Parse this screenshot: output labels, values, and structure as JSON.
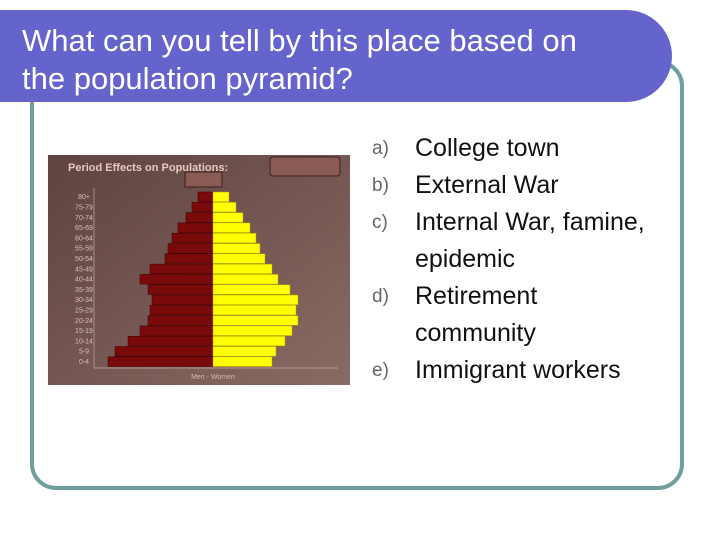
{
  "header": {
    "title": "What can you tell by this place based on the population pyramid?"
  },
  "figure": {
    "title": "Period Effects on Populations:",
    "xlabel": "Men - Women",
    "categories": [
      "80+",
      "75-79",
      "70-74",
      "65-69",
      "60-64",
      "55-59",
      "50-54",
      "45-49",
      "40-44",
      "35-39",
      "30-34",
      "25-29",
      "20-24",
      "15-19",
      "10-14",
      "5-9",
      "0-4"
    ],
    "series": [
      {
        "name": "Men",
        "color": "#7a0a0a",
        "values": [
          15,
          21,
          27,
          35,
          41,
          45,
          48,
          63,
          73,
          65,
          61,
          63,
          65,
          73,
          85,
          98,
          105
        ]
      },
      {
        "name": "Women",
        "color": "#ffff00",
        "values": [
          16,
          23,
          30,
          37,
          43,
          47,
          52,
          59,
          65,
          77,
          85,
          83,
          85,
          79,
          72,
          63,
          59
        ]
      }
    ]
  },
  "options": [
    {
      "marker": "a)",
      "text": "College town"
    },
    {
      "marker": "b)",
      "text": "External War"
    },
    {
      "marker": "c)",
      "text": "Internal War, famine, epidemic"
    },
    {
      "marker": "d)",
      "text": "Retirement community"
    },
    {
      "marker": "e)",
      "text": "Immigrant workers"
    }
  ]
}
